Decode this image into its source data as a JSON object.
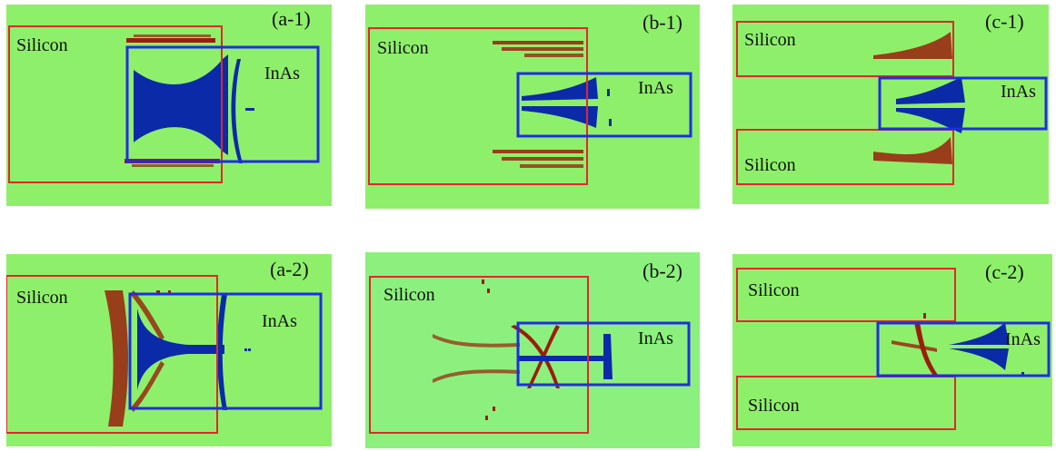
{
  "colors": {
    "background": "#8ef06a",
    "background_b2": "#8cf07e",
    "silicon_box": "#e4262b",
    "inas_box": "#1f2ee0",
    "silicon_defect": "#9a1e0c",
    "inas_defect": "#0b2aa8"
  },
  "panels": {
    "a1": {
      "label": "(a-1)",
      "silicon": "Silicon",
      "inas": "InAs"
    },
    "b1": {
      "label": "(b-1)",
      "silicon": "Silicon",
      "inas": "InAs"
    },
    "c1": {
      "label": "(c-1)",
      "silicon_top": "Silicon",
      "silicon_bottom": "Silicon",
      "inas": "InAs"
    },
    "a2": {
      "label": "(a-2)",
      "silicon": "Silicon",
      "inas": "InAs"
    },
    "b2": {
      "label": "(b-2)",
      "silicon": "Silicon",
      "inas": "InAs"
    },
    "c2": {
      "label": "(c-2)",
      "silicon_top": "Silicon",
      "silicon_bottom": "Silicon",
      "inas": "InAs"
    }
  }
}
